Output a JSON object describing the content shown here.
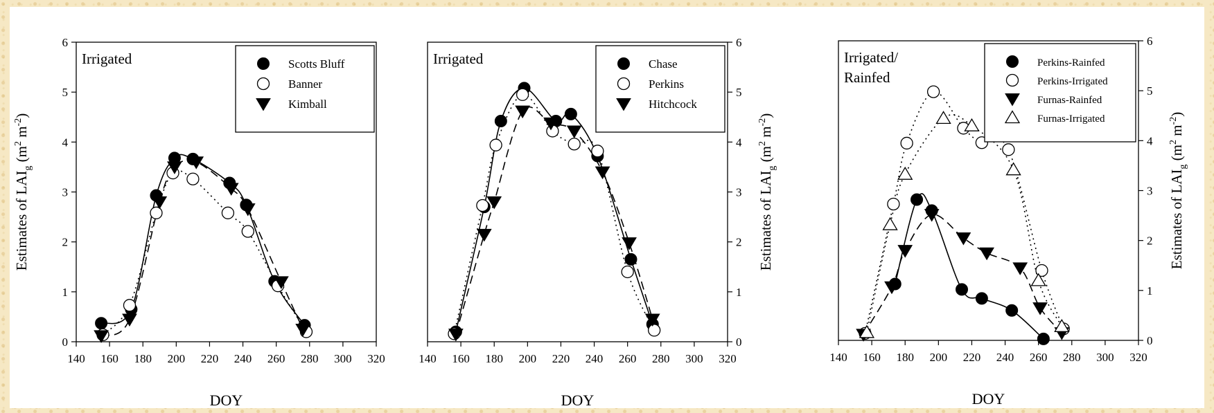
{
  "chart_data": [
    {
      "type": "line",
      "panel_label": "Irrigated",
      "xlabel": "DOY",
      "ylabel": "Estimates of LAI",
      "ylabel_sub": "g",
      "ylabel_unit": " (m",
      "ylabel_sup1": "2",
      "ylabel_mid": " m",
      "ylabel_sup2": "-2",
      "ylabel_end": ")",
      "ylabel_side": "left",
      "xlim": [
        140,
        320
      ],
      "ylim": [
        0,
        6
      ],
      "xticks": [
        140,
        160,
        180,
        200,
        220,
        240,
        260,
        280,
        300,
        320
      ],
      "yticks": [
        0,
        1,
        2,
        3,
        4,
        5,
        6
      ],
      "grid": false,
      "legend_position": "top-right",
      "series": [
        {
          "name": "Scotts Bluff",
          "marker": "filled-circle",
          "line": "solid",
          "x": [
            155,
            173,
            188,
            199,
            210,
            232,
            242,
            259,
            277
          ],
          "y": [
            0.37,
            0.65,
            2.93,
            3.68,
            3.66,
            3.18,
            2.74,
            1.21,
            0.33
          ]
        },
        {
          "name": "Banner",
          "marker": "open-circle",
          "line": "dotted",
          "x": [
            156,
            172,
            188,
            198,
            210,
            231,
            243,
            261,
            278
          ],
          "y": [
            0.14,
            0.73,
            2.58,
            3.38,
            3.26,
            2.58,
            2.21,
            1.12,
            0.2
          ]
        },
        {
          "name": "Kimball",
          "marker": "filled-triangle-down",
          "line": "dashed",
          "x": [
            155,
            172,
            190,
            199,
            212,
            233,
            243,
            263,
            276
          ],
          "y": [
            0.12,
            0.45,
            2.8,
            3.5,
            3.6,
            3.07,
            2.66,
            1.2,
            0.25
          ]
        }
      ]
    },
    {
      "type": "line",
      "panel_label": "Irrigated",
      "xlabel": "DOY",
      "ylabel": "Estimates of LAI",
      "ylabel_sub": "g",
      "ylabel_unit": " (m",
      "ylabel_sup1": "2",
      "ylabel_mid": " m",
      "ylabel_sup2": "-2",
      "ylabel_end": ")",
      "ylabel_side": "right",
      "xlim": [
        140,
        320
      ],
      "ylim": [
        0,
        6
      ],
      "xticks": [
        140,
        160,
        180,
        200,
        220,
        240,
        260,
        280,
        300,
        320
      ],
      "yticks": [
        0,
        1,
        2,
        3,
        4,
        5,
        6
      ],
      "grid": false,
      "legend_position": "top-right",
      "series": [
        {
          "name": "Chase",
          "marker": "filled-circle",
          "line": "solid",
          "x": [
            157,
            174,
            184,
            198,
            217,
            226,
            242,
            262,
            275
          ],
          "y": [
            0.2,
            2.7,
            4.42,
            5.08,
            4.42,
            4.56,
            3.72,
            1.65,
            0.35
          ]
        },
        {
          "name": "Perkins",
          "marker": "open-circle",
          "line": "dotted",
          "x": [
            156,
            173,
            181,
            197,
            215,
            228,
            242,
            260,
            276
          ],
          "y": [
            0.16,
            2.73,
            3.94,
            4.95,
            4.22,
            3.96,
            3.82,
            1.4,
            0.23
          ]
        },
        {
          "name": "Hitchcock",
          "marker": "filled-triangle-down",
          "line": "dashed",
          "x": [
            157,
            174,
            180,
            197,
            214,
            228,
            245,
            261,
            275
          ],
          "y": [
            0.15,
            2.15,
            2.8,
            4.62,
            4.38,
            4.22,
            3.4,
            1.98,
            0.45
          ]
        }
      ]
    },
    {
      "type": "line",
      "panel_label_line1": "Irrigated/",
      "panel_label_line2": "Rainfed",
      "xlabel": "DOY",
      "ylabel": "Estimates of LAI",
      "ylabel_sub": "g",
      "ylabel_unit": " (m",
      "ylabel_sup1": "2",
      "ylabel_mid": " m",
      "ylabel_sup2": "-2",
      "ylabel_end": ")",
      "ylabel_side": "right",
      "xlim": [
        140,
        320
      ],
      "ylim": [
        0,
        6
      ],
      "xticks": [
        140,
        160,
        180,
        200,
        220,
        240,
        260,
        280,
        300,
        320
      ],
      "yticks": [
        0,
        1,
        2,
        3,
        4,
        5,
        6
      ],
      "grid": false,
      "legend_position": "top-right",
      "series": [
        {
          "name": "Perkins-Rainfed",
          "marker": "filled-circle",
          "line": "solid",
          "x": [
            174,
            187,
            196,
            214,
            226,
            244,
            263
          ],
          "y": [
            1.13,
            2.82,
            2.6,
            1.02,
            0.84,
            0.6,
            0.03
          ]
        },
        {
          "name": "Perkins-Irrigated",
          "marker": "open-circle",
          "line": "dotted",
          "x": [
            156,
            173,
            181,
            197,
            215,
            226,
            242,
            262,
            275
          ],
          "y": [
            0.14,
            2.73,
            3.95,
            4.98,
            4.25,
            3.96,
            3.82,
            1.4,
            0.23
          ]
        },
        {
          "name": "Furnas-Rainfed",
          "marker": "filled-triangle-down",
          "line": "dashed",
          "x": [
            155,
            172,
            180,
            196,
            215,
            229,
            249,
            261,
            274
          ],
          "y": [
            0.12,
            1.07,
            1.8,
            2.52,
            2.05,
            1.75,
            1.45,
            0.65,
            0.15
          ]
        },
        {
          "name": "Furnas-Irrigated",
          "marker": "open-triangle-up",
          "line": "dotted",
          "x": [
            157,
            171,
            180,
            203,
            220,
            245,
            260,
            274
          ],
          "y": [
            0.16,
            2.32,
            3.33,
            4.45,
            4.3,
            3.42,
            1.2,
            0.28
          ]
        }
      ]
    }
  ]
}
